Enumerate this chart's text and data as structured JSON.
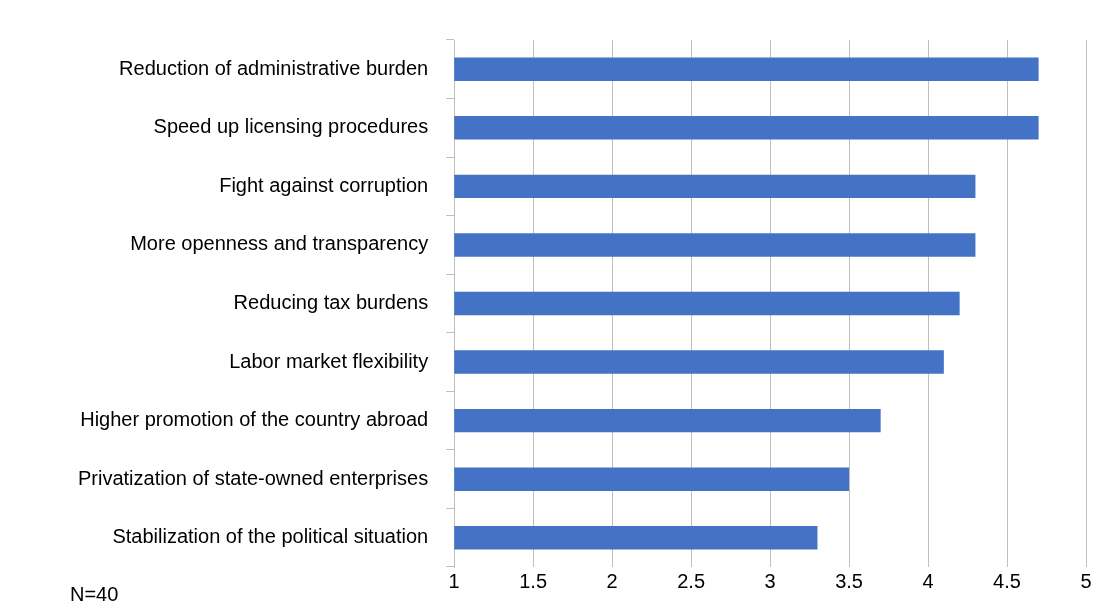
{
  "chart_data": {
    "type": "bar",
    "orientation": "horizontal",
    "categories": [
      "Reduction of administrative burden",
      "Speed up licensing procedures",
      "Fight against corruption",
      "More openness and transparency",
      "Reducing tax burdens",
      "Labor market flexibility",
      "Higher promotion of the country abroad",
      "Privatization of state-owned enterprises",
      "Stabilization of the political situation"
    ],
    "values": [
      4.7,
      4.7,
      4.3,
      4.3,
      4.2,
      4.1,
      3.7,
      3.5,
      3.3
    ],
    "color": "#4472c4",
    "xlim": [
      1,
      5
    ],
    "xticks": [
      1,
      1.5,
      2,
      2.5,
      3,
      3.5,
      4,
      4.5,
      5
    ],
    "grid": "x",
    "legend": false,
    "annotations": [
      "N=40"
    ]
  }
}
